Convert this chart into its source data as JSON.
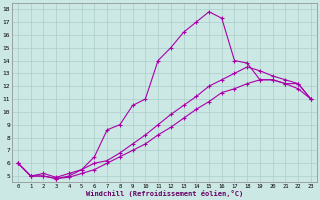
{
  "xlabel": "Windchill (Refroidissement éolien,°C)",
  "bg_color": "#cce8e4",
  "grid_color": "#aaceca",
  "line_color": "#aa00aa",
  "marker": "+",
  "xlim": [
    -0.5,
    23.5
  ],
  "ylim": [
    4.5,
    18.5
  ],
  "xticks": [
    0,
    1,
    2,
    3,
    4,
    5,
    6,
    7,
    8,
    9,
    10,
    11,
    12,
    13,
    14,
    15,
    16,
    17,
    18,
    19,
    20,
    21,
    22,
    23
  ],
  "yticks": [
    5,
    6,
    7,
    8,
    9,
    10,
    11,
    12,
    13,
    14,
    15,
    16,
    17,
    18
  ],
  "series1_x": [
    0,
    1,
    2,
    3,
    4,
    5,
    6,
    7,
    8,
    9,
    10,
    11,
    12,
    13,
    14,
    15,
    16,
    17,
    18,
    19,
    20,
    21,
    22,
    23
  ],
  "series1_y": [
    6.0,
    5.0,
    5.2,
    4.9,
    5.2,
    5.5,
    6.5,
    8.6,
    9.0,
    10.5,
    11.0,
    14.0,
    15.0,
    16.2,
    17.0,
    17.8,
    17.3,
    14.0,
    13.8,
    12.5,
    12.5,
    12.2,
    12.2,
    11.0
  ],
  "series2_x": [
    0,
    1,
    2,
    3,
    4,
    5,
    6,
    7,
    8,
    9,
    10,
    11,
    12,
    13,
    14,
    15,
    16,
    17,
    18,
    19,
    20,
    21,
    22,
    23
  ],
  "series2_y": [
    6.0,
    5.0,
    5.0,
    4.8,
    5.0,
    5.5,
    6.0,
    6.2,
    6.8,
    7.5,
    8.2,
    9.0,
    9.8,
    10.5,
    11.2,
    12.0,
    12.5,
    13.0,
    13.5,
    13.2,
    12.8,
    12.5,
    12.2,
    11.0
  ],
  "series3_x": [
    0,
    1,
    2,
    3,
    4,
    5,
    6,
    7,
    8,
    9,
    10,
    11,
    12,
    13,
    14,
    15,
    16,
    17,
    18,
    19,
    20,
    21,
    22,
    23
  ],
  "series3_y": [
    6.0,
    5.0,
    5.0,
    4.8,
    4.9,
    5.2,
    5.5,
    6.0,
    6.5,
    7.0,
    7.5,
    8.2,
    8.8,
    9.5,
    10.2,
    10.8,
    11.5,
    11.8,
    12.2,
    12.5,
    12.5,
    12.2,
    11.8,
    11.0
  ]
}
